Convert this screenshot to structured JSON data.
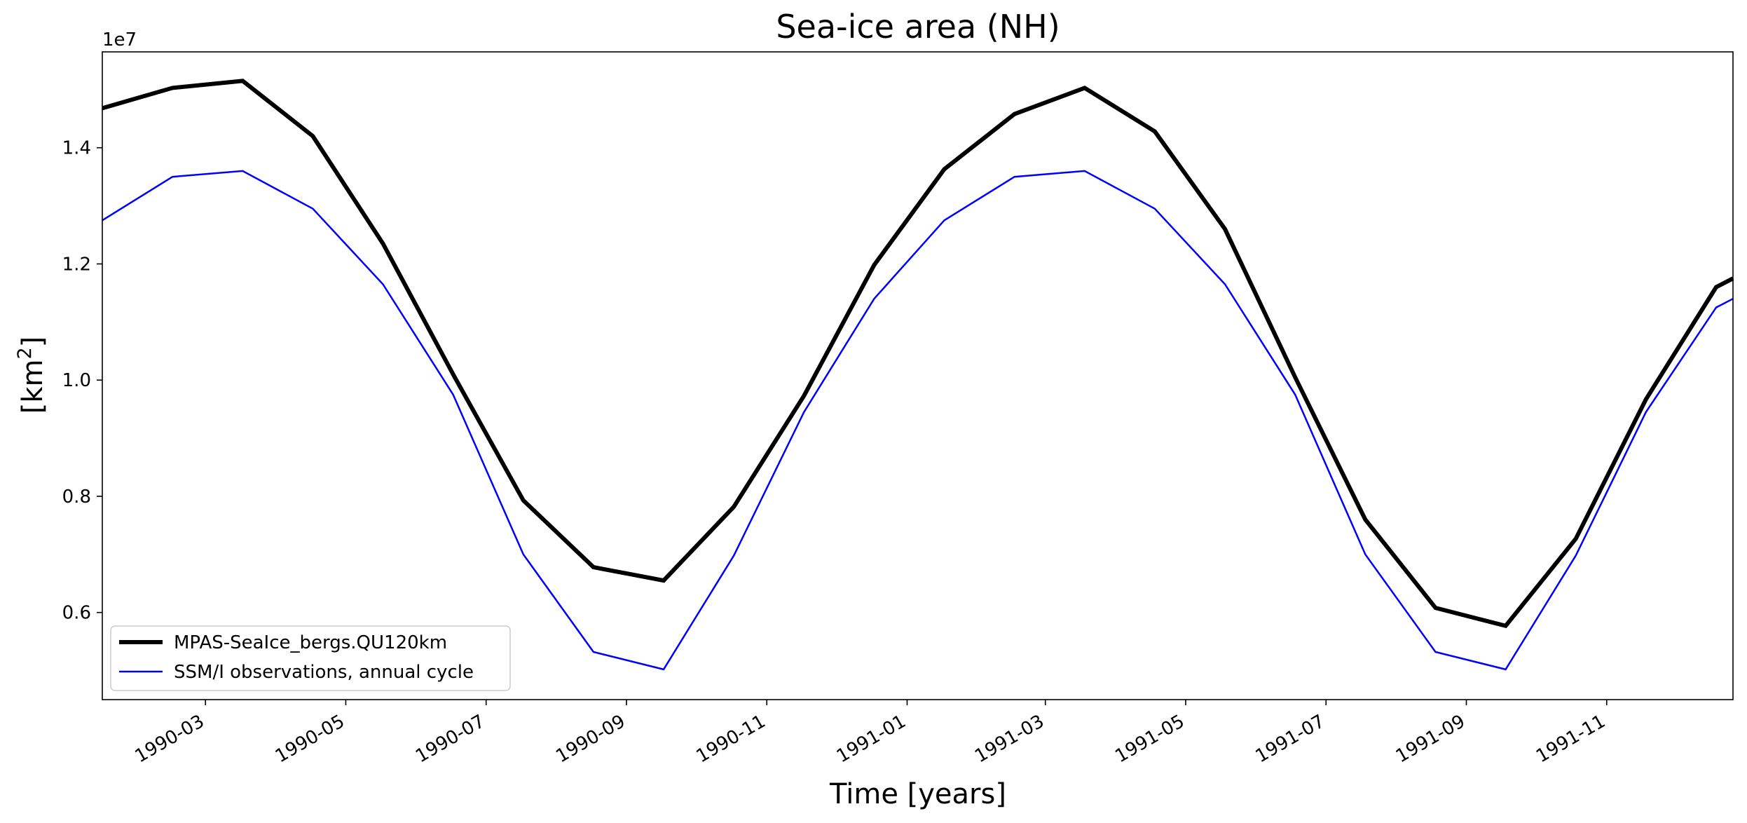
{
  "chart_data": {
    "type": "line",
    "title": "Sea-ice area (NH)",
    "xlabel": "Time [years]",
    "ylabel": "[km",
    "ylabel_sup": "2",
    "ylabel_close": "]",
    "offset_label": "1e7",
    "ylim": [
      0.45,
      1.565
    ],
    "xlim": [
      0.5,
      23.74
    ],
    "yticks": [
      {
        "value": 0.6,
        "label": "0.6"
      },
      {
        "value": 0.8,
        "label": "0.8"
      },
      {
        "value": 1.0,
        "label": "1.0"
      },
      {
        "value": 1.2,
        "label": "1.2"
      },
      {
        "value": 1.4,
        "label": "1.4"
      }
    ],
    "xticks": [
      {
        "value": 1.97,
        "label": "1990-03"
      },
      {
        "value": 3.97,
        "label": "1990-05"
      },
      {
        "value": 5.97,
        "label": "1990-07"
      },
      {
        "value": 7.97,
        "label": "1990-09"
      },
      {
        "value": 9.97,
        "label": "1990-11"
      },
      {
        "value": 11.97,
        "label": "1991-01"
      },
      {
        "value": 13.94,
        "label": "1991-03"
      },
      {
        "value": 15.94,
        "label": "1991-05"
      },
      {
        "value": 17.94,
        "label": "1991-07"
      },
      {
        "value": 19.94,
        "label": "1991-09"
      },
      {
        "value": 21.94,
        "label": "1991-11"
      }
    ],
    "x": [
      0.5,
      1.5,
      2.5,
      3.5,
      4.5,
      5.5,
      6.5,
      7.5,
      8.5,
      9.5,
      10.5,
      11.5,
      12.5,
      13.5,
      14.5,
      15.5,
      16.5,
      17.5,
      18.5,
      19.5,
      20.5,
      21.5,
      22.5,
      23.5,
      23.74
    ],
    "series": [
      {
        "name": "MPAS-SeaIce_bergs.QU120km",
        "color": "#000000",
        "values": [
          1.468,
          1.503,
          1.515,
          1.42,
          1.235,
          1.01,
          0.793,
          0.678,
          0.655,
          0.782,
          0.973,
          1.198,
          1.363,
          1.458,
          1.503,
          1.428,
          1.26,
          1.005,
          0.76,
          0.608,
          0.577,
          0.727,
          0.967,
          1.16,
          1.175
        ]
      },
      {
        "name": "SSM/I observations, annual cycle",
        "color": "#0000ff",
        "values": [
          1.275,
          1.35,
          1.36,
          1.295,
          1.165,
          0.975,
          0.7,
          0.532,
          0.502,
          0.698,
          0.945,
          1.14,
          1.275,
          1.35,
          1.36,
          1.295,
          1.165,
          0.975,
          0.7,
          0.532,
          0.502,
          0.698,
          0.945,
          1.125,
          1.14
        ]
      }
    ],
    "legend_position": "lower-left"
  }
}
